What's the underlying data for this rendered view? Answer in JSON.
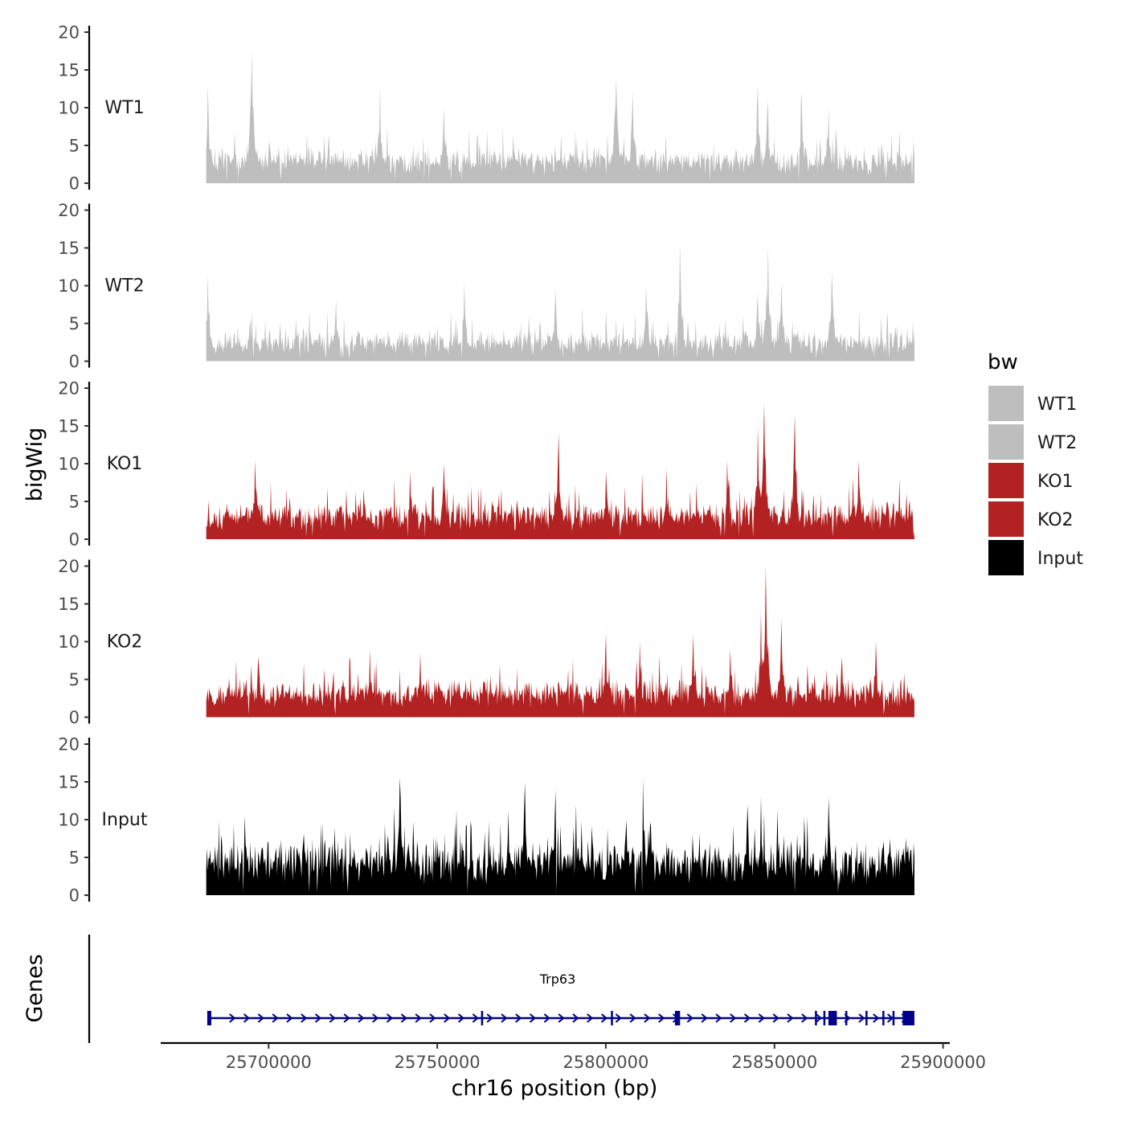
{
  "chart_data": {
    "type": "area",
    "title": "",
    "xlabel": "chr16 position (bp)",
    "ylabel": "bigWig",
    "genes_label": "Genes",
    "xlim": [
      25668000,
      25902000
    ],
    "data_xrange": [
      25681500,
      25891500
    ],
    "x_ticks": [
      25700000,
      25750000,
      25800000,
      25850000,
      25900000
    ],
    "x_tick_labels": [
      "25700000",
      "25750000",
      "25800000",
      "25850000",
      "25900000"
    ],
    "ylim": [
      0,
      20
    ],
    "y_ticks": [
      0,
      5,
      10,
      15,
      20
    ],
    "y_tick_labels": [
      "0",
      "5",
      "10",
      "15",
      "20"
    ],
    "series": [
      {
        "name": "WT1",
        "color": "#bebebe",
        "baseline": 2.5,
        "noise": 3.2,
        "seed": 11,
        "peaks": [
          [
            25682000,
            13
          ],
          [
            25695000,
            17.5
          ],
          [
            25733000,
            13
          ],
          [
            25752000,
            10
          ],
          [
            25803000,
            14
          ],
          [
            25808000,
            12
          ],
          [
            25845000,
            13
          ],
          [
            25848000,
            11
          ],
          [
            25858000,
            12
          ],
          [
            25866000,
            10
          ]
        ]
      },
      {
        "name": "WT2",
        "color": "#bebebe",
        "baseline": 2.0,
        "noise": 3.0,
        "seed": 23,
        "peaks": [
          [
            25682000,
            11.5
          ],
          [
            25720000,
            8
          ],
          [
            25758000,
            10.5
          ],
          [
            25785000,
            9.5
          ],
          [
            25812000,
            10
          ],
          [
            25822000,
            15.5
          ],
          [
            25845000,
            9
          ],
          [
            25848000,
            15.5
          ],
          [
            25852000,
            10.5
          ],
          [
            25867000,
            12
          ]
        ]
      },
      {
        "name": "KO1",
        "color": "#b22222",
        "baseline": 2.5,
        "noise": 3.5,
        "seed": 37,
        "peaks": [
          [
            25696000,
            10.5
          ],
          [
            25742000,
            9
          ],
          [
            25752000,
            10
          ],
          [
            25786000,
            14
          ],
          [
            25800000,
            9
          ],
          [
            25818000,
            9.5
          ],
          [
            25836000,
            10.5
          ],
          [
            25845000,
            15
          ],
          [
            25847000,
            18
          ],
          [
            25856000,
            16.5
          ],
          [
            25875000,
            10.5
          ]
        ]
      },
      {
        "name": "KO2",
        "color": "#b22222",
        "baseline": 2.5,
        "noise": 3.5,
        "seed": 53,
        "peaks": [
          [
            25697000,
            8
          ],
          [
            25730000,
            9
          ],
          [
            25745000,
            8.5
          ],
          [
            25800000,
            11
          ],
          [
            25810000,
            10
          ],
          [
            25826000,
            11
          ],
          [
            25837000,
            9
          ],
          [
            25846000,
            14
          ],
          [
            25847500,
            20
          ],
          [
            25852000,
            13
          ],
          [
            25870000,
            8
          ],
          [
            25880000,
            10
          ]
        ]
      },
      {
        "name": "Input",
        "color": "#000000",
        "baseline": 3.5,
        "noise": 5.0,
        "seed": 71,
        "peaks": [
          [
            25693000,
            10.5
          ],
          [
            25739000,
            15.5
          ],
          [
            25776000,
            15
          ],
          [
            25785000,
            14
          ],
          [
            25806000,
            10
          ],
          [
            25811000,
            15.5
          ],
          [
            25842000,
            12
          ],
          [
            25846000,
            13
          ],
          [
            25866000,
            13
          ]
        ]
      }
    ],
    "legend": {
      "title": "bw",
      "position": "right",
      "entries": [
        {
          "label": "WT1",
          "color": "#bebebe"
        },
        {
          "label": "WT2",
          "color": "#bebebe"
        },
        {
          "label": "KO1",
          "color": "#b22222"
        },
        {
          "label": "KO2",
          "color": "#b22222"
        },
        {
          "label": "Input",
          "color": "#000000"
        }
      ]
    },
    "gene": {
      "name": "Trp63",
      "chrom": "chr16",
      "start": 25682000,
      "end": 25891000,
      "strand": "+",
      "color": "#00008b",
      "exons": [
        [
          25681800,
          25683000
        ],
        [
          25763000,
          25763600
        ],
        [
          25801500,
          25802000
        ],
        [
          25820500,
          25822000
        ],
        [
          25862000,
          25862400
        ],
        [
          25864500,
          25865000
        ],
        [
          25866000,
          25868500
        ],
        [
          25871000,
          25871500
        ],
        [
          25877000,
          25877500
        ],
        [
          25882000,
          25882400
        ],
        [
          25885000,
          25885500
        ],
        [
          25888000,
          25891500
        ]
      ]
    }
  }
}
